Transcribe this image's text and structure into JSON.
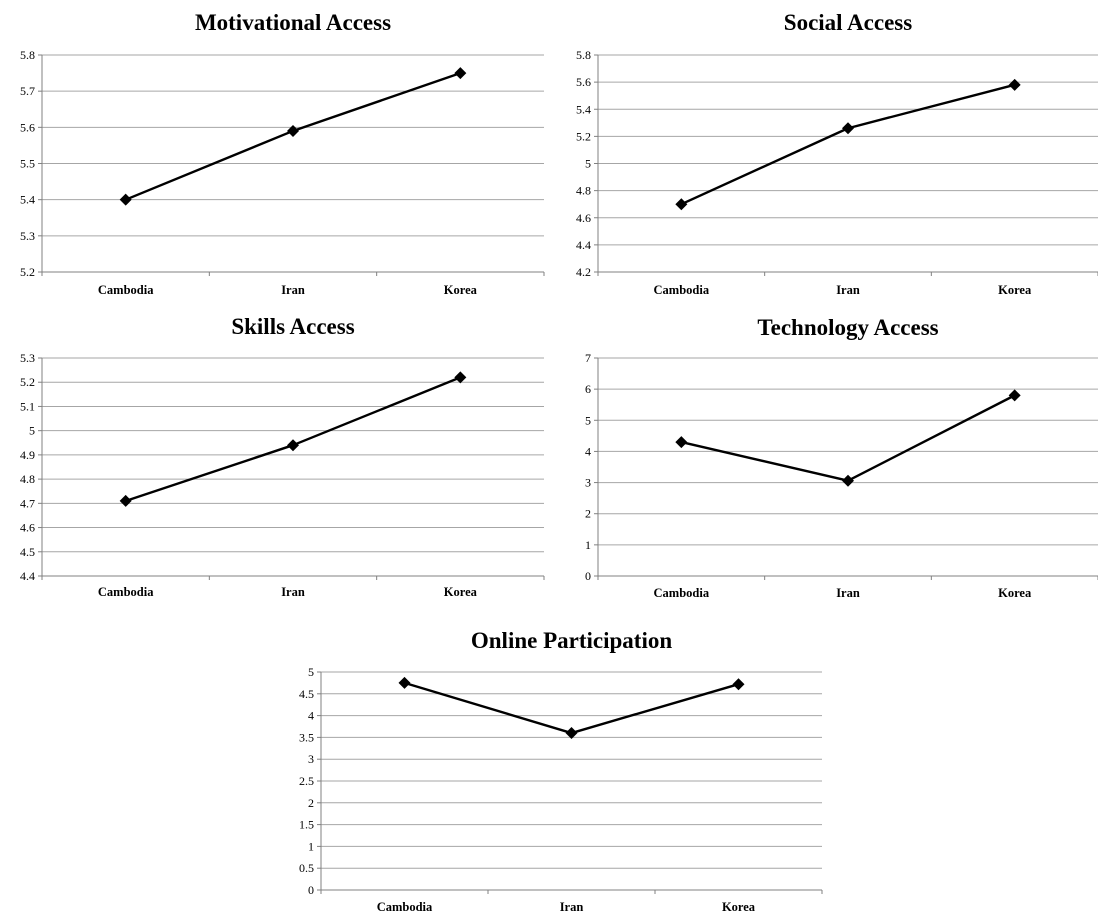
{
  "chart_data": [
    {
      "type": "line",
      "title": "Motivational Access",
      "categories": [
        "Cambodia",
        "Iran",
        "Korea"
      ],
      "values": [
        5.4,
        5.59,
        5.75
      ],
      "ylim": [
        5.2,
        5.8
      ],
      "yticks": [
        "5.2",
        "5.3",
        "5.4",
        "5.5",
        "5.6",
        "5.7",
        "5.8"
      ],
      "grid": true,
      "series_color": "#000000"
    },
    {
      "type": "line",
      "title": "Social Access",
      "categories": [
        "Cambodia",
        "Iran",
        "Korea"
      ],
      "values": [
        4.7,
        5.26,
        5.58
      ],
      "ylim": [
        4.2,
        5.8
      ],
      "yticks": [
        "4.2",
        "4.4",
        "4.6",
        "4.8",
        "5",
        "5.2",
        "5.4",
        "5.6",
        "5.8"
      ],
      "grid": true,
      "series_color": "#000000"
    },
    {
      "type": "line",
      "title": "Skills Access",
      "categories": [
        "Cambodia",
        "Iran",
        "Korea"
      ],
      "values": [
        4.71,
        4.94,
        5.22
      ],
      "ylim": [
        4.4,
        5.3
      ],
      "yticks": [
        "4.4",
        "4.5",
        "4.6",
        "4.7",
        "4.8",
        "4.9",
        "5",
        "5.1",
        "5.2",
        "5.3"
      ],
      "grid": true,
      "series_color": "#000000"
    },
    {
      "type": "line",
      "title": "Technology Access",
      "categories": [
        "Cambodia",
        "Iran",
        "Korea"
      ],
      "values": [
        4.3,
        3.06,
        5.8
      ],
      "ylim": [
        0,
        7
      ],
      "yticks": [
        "0",
        "1",
        "2",
        "3",
        "4",
        "5",
        "6",
        "7"
      ],
      "grid": true,
      "series_color": "#000000"
    },
    {
      "type": "line",
      "title": "Online Participation",
      "categories": [
        "Cambodia",
        "Iran",
        "Korea"
      ],
      "values": [
        4.75,
        3.6,
        4.72
      ],
      "ylim": [
        0,
        5
      ],
      "yticks": [
        "0",
        "0.5",
        "1",
        "1.5",
        "2",
        "2.5",
        "3",
        "3.5",
        "4",
        "4.5",
        "5"
      ],
      "grid": true,
      "series_color": "#000000"
    }
  ]
}
